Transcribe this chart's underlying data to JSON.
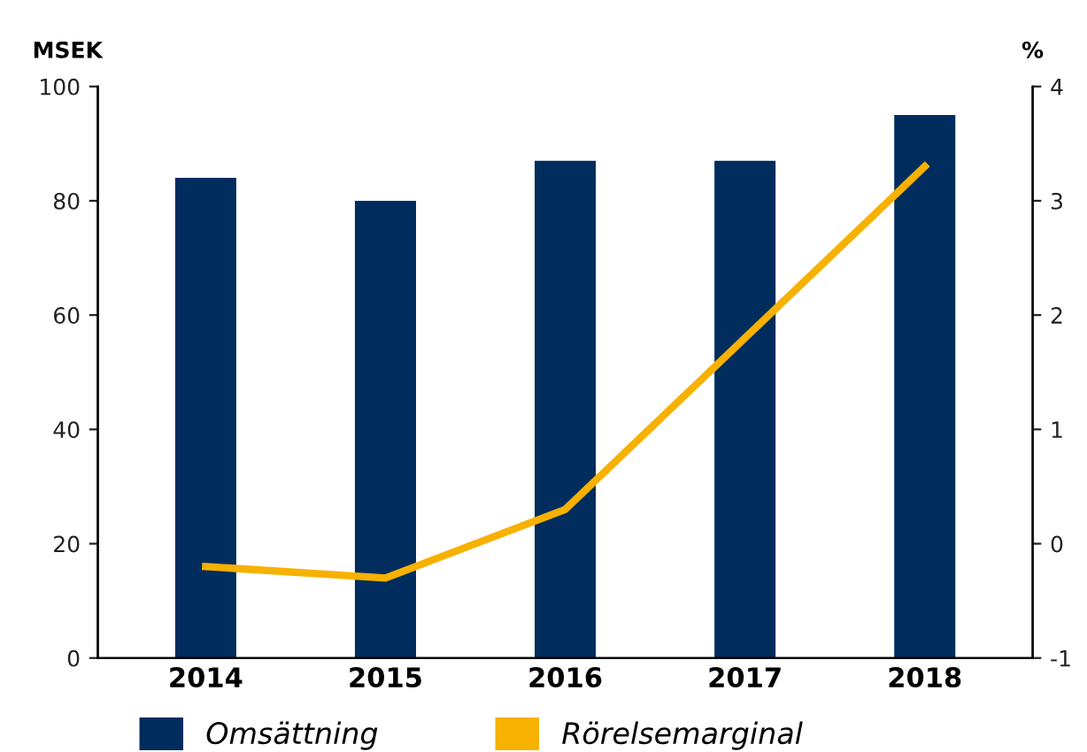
{
  "chart_data": {
    "type": "bar",
    "categories": [
      "2014",
      "2015",
      "2016",
      "2017",
      "2018"
    ],
    "ylabel": "MSEK",
    "y2label": "%",
    "series": [
      {
        "name": "Omsättning",
        "color": "#002d5e",
        "values": [
          84,
          80,
          87,
          87,
          95
        ]
      },
      {
        "name": "Rörelsemarginal",
        "type": "line",
        "axis": "y2",
        "color": "#f7b100",
        "values": [
          -0.2,
          -0.3,
          0.3,
          1.8,
          3.3
        ]
      }
    ],
    "ylim": [
      0,
      100
    ],
    "yticks": [
      0,
      20,
      40,
      60,
      80,
      100
    ],
    "y2lim": [
      -1,
      4
    ],
    "y2ticks": [
      {
        "value": -1,
        "label": "-1"
      },
      0,
      1,
      2,
      3,
      4
    ],
    "grid": false,
    "legend": "bottom",
    "marker": "none",
    "line_style": "solid"
  }
}
